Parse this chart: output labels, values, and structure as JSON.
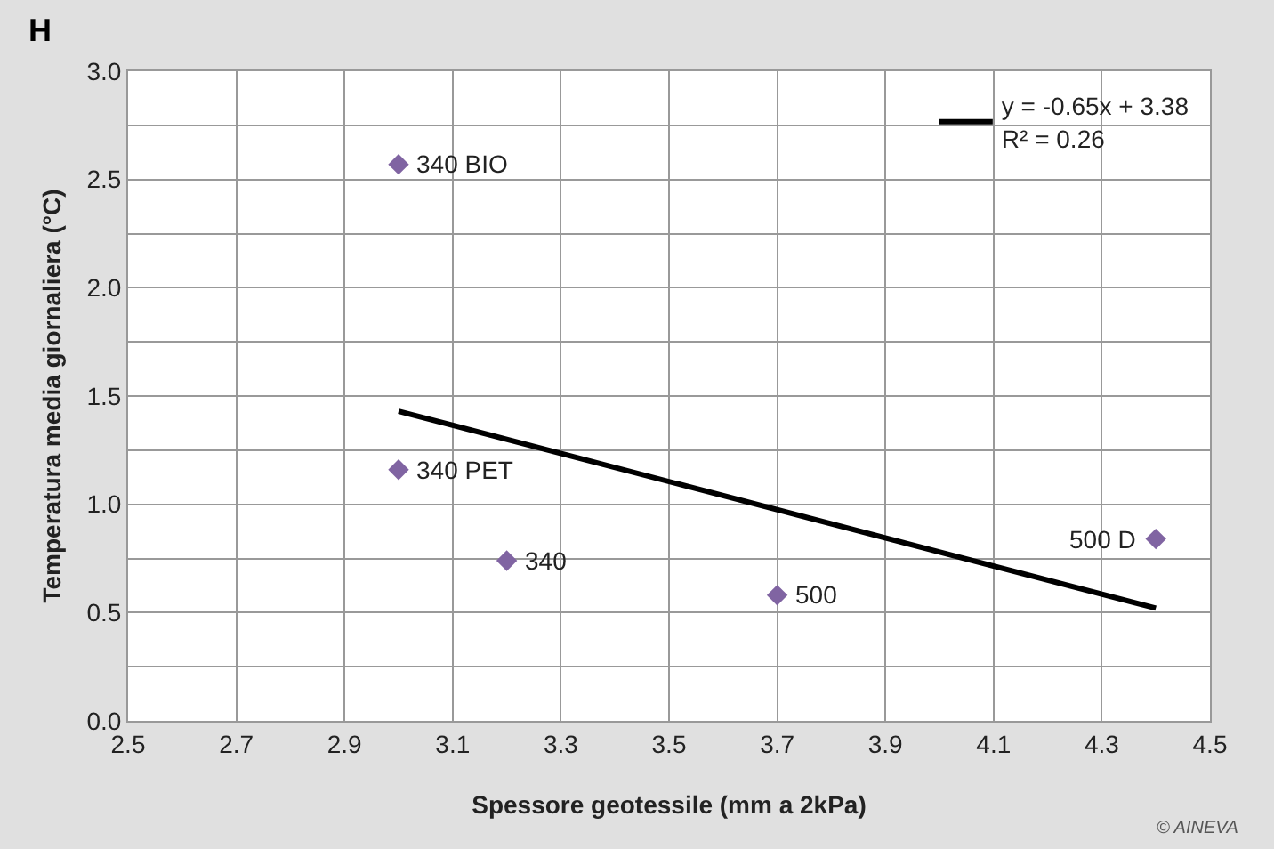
{
  "chart_data": {
    "type": "scatter",
    "xlabel": "Spessore geotessile (mm a 2kPa)",
    "ylabel": "Temperatura media giornaliera (°C)",
    "series": [
      {
        "type": "scatter",
        "color": "#8064a2",
        "marker": "diamond",
        "x": [
          3.0,
          3.0,
          3.2,
          3.7,
          4.4
        ],
        "values": [
          2.57,
          1.16,
          0.74,
          0.58,
          0.84
        ]
      },
      {
        "type": "line",
        "name": "y = -0.65x + 3.38\nR² = 0.26",
        "color": "#000000",
        "line_style": "solid",
        "marker": "none",
        "x": [
          3.0,
          4.4
        ],
        "values": [
          1.43,
          0.52
        ]
      }
    ],
    "xlim": [
      2.5,
      4.5
    ],
    "xticks": [
      2.5,
      2.7,
      2.9,
      3.1,
      3.3,
      3.5,
      3.7,
      3.9,
      4.1,
      4.3,
      4.5
    ],
    "ylim": [
      0,
      3
    ],
    "yticks": [
      {
        "value": 0,
        "label": "0.0"
      },
      {
        "value": 0.25,
        "label": null
      },
      0.5,
      {
        "value": 0.75,
        "label": null
      },
      {
        "value": 1,
        "label": "1.0"
      },
      {
        "value": 1.25,
        "label": null
      },
      1.5,
      {
        "value": 1.75,
        "label": null
      },
      {
        "value": 2,
        "label": "2.0"
      },
      {
        "value": 2.25,
        "label": null
      },
      2.5,
      {
        "value": 2.75,
        "label": null
      },
      {
        "value": 3,
        "label": "3.0"
      }
    ],
    "grid": true,
    "legend": "top right",
    "annotations": [
      {
        "text": "340 BIO",
        "x": 3.0,
        "y": 2.57
      },
      {
        "text": "340 PET",
        "x": 3.0,
        "y": 1.16
      },
      {
        "text": "340",
        "x": 3.2,
        "y": 0.74
      },
      {
        "text": "500",
        "x": 3.7,
        "y": 0.58
      },
      {
        "text": "500 D",
        "x": 4.4,
        "y": 0.84
      },
      "H",
      "© AINEVA"
    ]
  }
}
